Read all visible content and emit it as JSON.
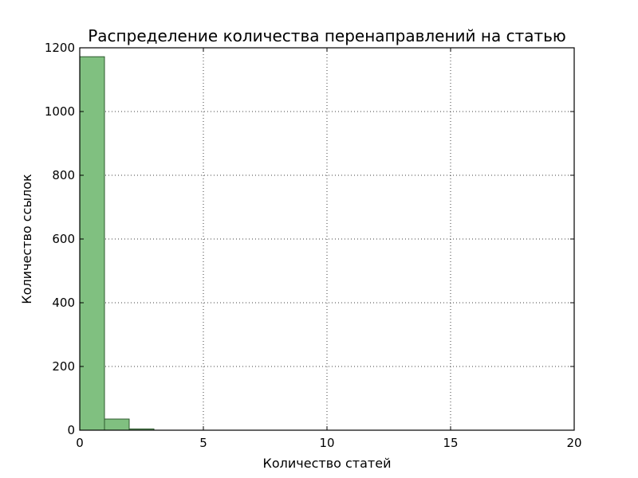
{
  "chart_data": {
    "type": "bar",
    "title": "Распределение количества перенаправлений на статью",
    "xlabel": "Количество статей",
    "ylabel": "Количество ссылок",
    "xlim": [
      0,
      20
    ],
    "ylim": [
      0,
      1200
    ],
    "xticks": [
      0,
      5,
      10,
      15,
      20
    ],
    "yticks": [
      0,
      200,
      400,
      600,
      800,
      1000,
      1200
    ],
    "grid": true,
    "bar_color": "#80c080",
    "bar_edge_color": "#2e5a2e",
    "bins": [
      {
        "x0": 0,
        "x1": 1,
        "count": 1172
      },
      {
        "x0": 1,
        "x1": 2,
        "count": 35
      },
      {
        "x0": 2,
        "x1": 3,
        "count": 4
      }
    ]
  }
}
